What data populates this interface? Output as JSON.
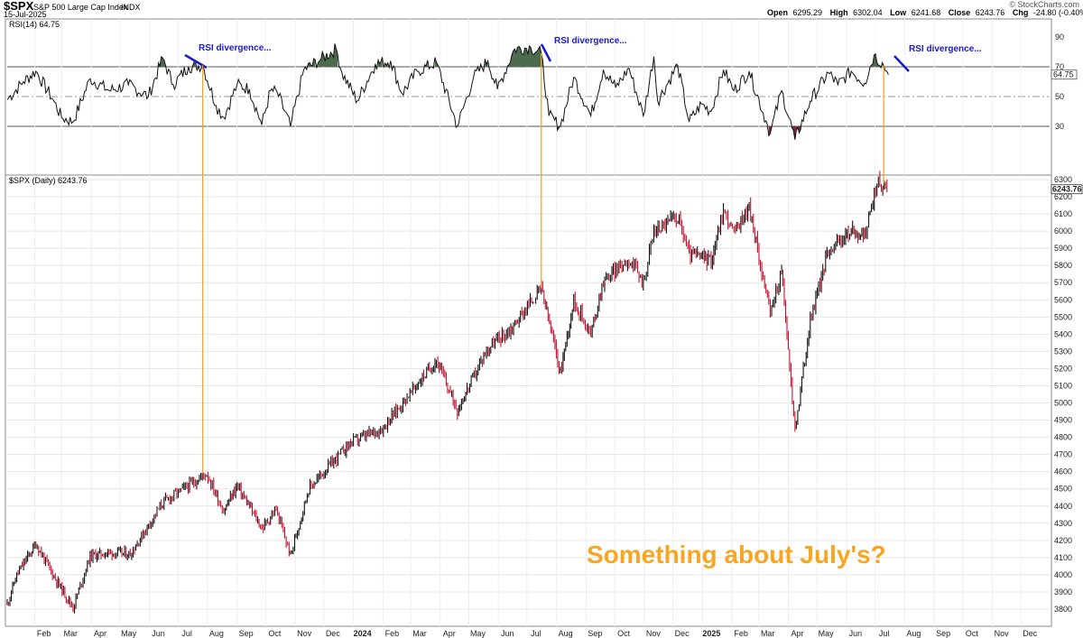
{
  "header": {
    "symbol": "$SPX",
    "name": "S&P 500 Large Cap Index",
    "exchange": "INDX",
    "date": "15-Jul-2025",
    "open_label": "Open",
    "open": "6295.29",
    "high_label": "High",
    "high": "6302.04",
    "low_label": "Low",
    "low": "6241.68",
    "close_label": "Close",
    "close": "6243.76",
    "chg_label": "Chg",
    "chg": "-24.80 (-0.40%)",
    "brand": "© StockCharts.com"
  },
  "rsi_panel": {
    "legend": "RSI(14) 64.75",
    "last_value": "64.75"
  },
  "price_panel": {
    "legend": "$SPX (Daily) 6243.76",
    "last_value": "6243.76"
  },
  "annotation": {
    "headline": "Something about July's?",
    "color": "#f5a623",
    "divergence_color": "#1a1acc"
  },
  "chart_data": [
    {
      "type": "line",
      "panel": "RSI(14)",
      "ylim": [
        15,
        100
      ],
      "y_ticks": [
        30,
        50,
        70,
        90
      ],
      "reference_lines": [
        30,
        50,
        70
      ],
      "x_axis": "date",
      "series": [
        {
          "values_by_date": [
            [
              "2023-01-03",
              48
            ],
            [
              "2023-01-20",
              60
            ],
            [
              "2023-02-02",
              67
            ],
            [
              "2023-02-20",
              48
            ],
            [
              "2023-03-01",
              36
            ],
            [
              "2023-03-13",
              33
            ],
            [
              "2023-03-31",
              62
            ],
            [
              "2023-04-20",
              54
            ],
            [
              "2023-05-10",
              58
            ],
            [
              "2023-05-31",
              50
            ],
            [
              "2023-06-15",
              76
            ],
            [
              "2023-06-26",
              58
            ],
            [
              "2023-07-12",
              70
            ],
            [
              "2023-07-27",
              71
            ],
            [
              "2023-08-10",
              44
            ],
            [
              "2023-08-18",
              36
            ],
            [
              "2023-09-01",
              58
            ],
            [
              "2023-09-14",
              55
            ],
            [
              "2023-09-27",
              31
            ],
            [
              "2023-10-06",
              54
            ],
            [
              "2023-10-13",
              53
            ],
            [
              "2023-10-27",
              30
            ],
            [
              "2023-11-10",
              68
            ],
            [
              "2023-11-28",
              75
            ],
            [
              "2023-12-14",
              82
            ],
            [
              "2023-12-20",
              66
            ],
            [
              "2024-01-05",
              47
            ],
            [
              "2024-01-24",
              72
            ],
            [
              "2024-02-09",
              74
            ],
            [
              "2024-02-21",
              52
            ],
            [
              "2024-03-08",
              67
            ],
            [
              "2024-03-28",
              73
            ],
            [
              "2024-04-19",
              30
            ],
            [
              "2024-05-06",
              63
            ],
            [
              "2024-05-21",
              74
            ],
            [
              "2024-05-31",
              55
            ],
            [
              "2024-06-18",
              82
            ],
            [
              "2024-07-05",
              83
            ],
            [
              "2024-07-16",
              79
            ],
            [
              "2024-07-24",
              37
            ],
            [
              "2024-08-05",
              30
            ],
            [
              "2024-08-19",
              63
            ],
            [
              "2024-09-06",
              37
            ],
            [
              "2024-09-19",
              68
            ],
            [
              "2024-10-02",
              56
            ],
            [
              "2024-10-16",
              69
            ],
            [
              "2024-10-31",
              37
            ],
            [
              "2024-11-11",
              77
            ],
            [
              "2024-11-15",
              47
            ],
            [
              "2024-12-06",
              71
            ],
            [
              "2024-12-18",
              33
            ],
            [
              "2024-12-31",
              45
            ],
            [
              "2025-01-10",
              40
            ],
            [
              "2025-01-23",
              68
            ],
            [
              "2025-02-03",
              54
            ],
            [
              "2025-02-19",
              67
            ],
            [
              "2025-03-10",
              31
            ],
            [
              "2025-03-13",
              25
            ],
            [
              "2025-03-25",
              54
            ],
            [
              "2025-04-08",
              21
            ],
            [
              "2025-04-24",
              47
            ],
            [
              "2025-05-13",
              66
            ],
            [
              "2025-05-23",
              58
            ],
            [
              "2025-06-06",
              67
            ],
            [
              "2025-06-20",
              59
            ],
            [
              "2025-06-30",
              78
            ],
            [
              "2025-07-10",
              71
            ],
            [
              "2025-07-15",
              64.75
            ]
          ]
        }
      ]
    },
    {
      "type": "candlestick",
      "panel": "$SPX (Daily)",
      "ylim": [
        3780,
        6310
      ],
      "y_ticks": [
        3800,
        3900,
        4000,
        4100,
        4200,
        4300,
        4400,
        4500,
        4600,
        4700,
        4800,
        4900,
        5000,
        5100,
        5200,
        5300,
        5400,
        5500,
        5600,
        5700,
        5800,
        5900,
        6000,
        6100,
        6200,
        6300
      ],
      "x_axis": "date",
      "x_tick_labels": [
        "Feb",
        "Mar",
        "Apr",
        "May",
        "Jun",
        "Jul",
        "Aug",
        "Sep",
        "Oct",
        "Nov",
        "Dec",
        "2024",
        "Feb",
        "Mar",
        "Apr",
        "May",
        "Jun",
        "Jul",
        "Aug",
        "Sep",
        "Oct",
        "Nov",
        "Dec",
        "2025",
        "Feb",
        "Mar",
        "Apr",
        "May",
        "Jun",
        "Jul",
        "Aug",
        "Sep",
        "Oct",
        "Nov",
        "Dec"
      ],
      "close_path_by_date": [
        [
          "2023-01-03",
          3830
        ],
        [
          "2023-01-13",
          4000
        ],
        [
          "2023-02-02",
          4180
        ],
        [
          "2023-02-21",
          3990
        ],
        [
          "2023-03-13",
          3810
        ],
        [
          "2023-03-31",
          4110
        ],
        [
          "2023-04-20",
          4130
        ],
        [
          "2023-05-12",
          4120
        ],
        [
          "2023-06-15",
          4420
        ],
        [
          "2023-07-31",
          4590
        ],
        [
          "2023-08-18",
          4370
        ],
        [
          "2023-09-01",
          4520
        ],
        [
          "2023-09-27",
          4270
        ],
        [
          "2023-10-12",
          4380
        ],
        [
          "2023-10-27",
          4110
        ],
        [
          "2023-11-15",
          4500
        ],
        [
          "2023-12-29",
          4770
        ],
        [
          "2024-01-31",
          4850
        ],
        [
          "2024-03-28",
          5250
        ],
        [
          "2024-04-19",
          4960
        ],
        [
          "2024-05-21",
          5320
        ],
        [
          "2024-06-14",
          5430
        ],
        [
          "2024-07-16",
          5670
        ],
        [
          "2024-08-05",
          5180
        ],
        [
          "2024-08-19",
          5600
        ],
        [
          "2024-09-06",
          5400
        ],
        [
          "2024-09-19",
          5710
        ],
        [
          "2024-10-16",
          5840
        ],
        [
          "2024-10-31",
          5700
        ],
        [
          "2024-11-11",
          6000
        ],
        [
          "2024-12-06",
          6090
        ],
        [
          "2024-12-18",
          5870
        ],
        [
          "2025-01-10",
          5830
        ],
        [
          "2025-01-23",
          6120
        ],
        [
          "2025-02-03",
          5990
        ],
        [
          "2025-02-19",
          6140
        ],
        [
          "2025-03-13",
          5520
        ],
        [
          "2025-03-25",
          5770
        ],
        [
          "2025-04-08",
          4840
        ],
        [
          "2025-04-24",
          5480
        ],
        [
          "2025-05-13",
          5890
        ],
        [
          "2025-06-06",
          6000
        ],
        [
          "2025-06-20",
          5970
        ],
        [
          "2025-07-03",
          6280
        ],
        [
          "2025-07-15",
          6243.76
        ]
      ]
    }
  ]
}
